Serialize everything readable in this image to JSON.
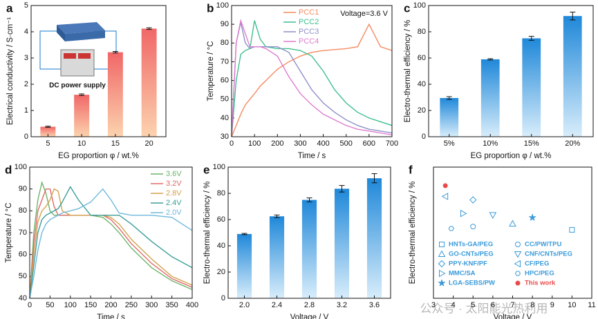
{
  "chart_data": [
    {
      "type": "bar",
      "panel_label": "a",
      "xlabel": "EG proportion φ / wt.%",
      "ylabel": "Electrical conductivity / S·cm⁻¹",
      "inset_label": "DC power supply",
      "categories": [
        "5",
        "10",
        "15",
        "20"
      ],
      "values": [
        0.38,
        1.6,
        3.22,
        4.12
      ],
      "errors": [
        0.02,
        0.03,
        0.03,
        0.03
      ],
      "colors": [
        "#f06767",
        "#fcd3ae"
      ],
      "ylim": [
        0,
        5
      ],
      "yticks": [
        0,
        1,
        2,
        3,
        4,
        5
      ]
    },
    {
      "type": "line",
      "panel_label": "b",
      "xlabel": "Time / s",
      "ylabel": "Temperature / °C",
      "annotation": "Voltage=3.6 V",
      "legend": "top",
      "x": [
        0,
        20,
        40,
        60,
        80,
        100,
        125,
        150,
        200,
        250,
        300,
        350,
        400,
        450,
        500,
        550,
        600,
        650,
        700
      ],
      "series": [
        {
          "name": "PCC1",
          "color": "#f4895f",
          "values": [
            30,
            36,
            42,
            47,
            50,
            53,
            57,
            60,
            66,
            70,
            73,
            75,
            76,
            76.5,
            77,
            78,
            90,
            78,
            76
          ]
        },
        {
          "name": "PCC2",
          "color": "#3fbf8c",
          "values": [
            30,
            60,
            74,
            76,
            77,
            92,
            82,
            78,
            77,
            77,
            76,
            73,
            65,
            55,
            48,
            43,
            40,
            38,
            36
          ]
        },
        {
          "name": "PCC3",
          "color": "#8d8fc9",
          "values": [
            30,
            80,
            91,
            80,
            77,
            78,
            78,
            78,
            78,
            75,
            65,
            55,
            48,
            43,
            39,
            36,
            34,
            33,
            32
          ]
        },
        {
          "name": "PCC4",
          "color": "#de7ccf",
          "values": [
            30,
            80,
            92,
            85,
            78,
            78,
            78,
            77,
            73,
            62,
            53,
            47,
            42,
            39,
            36,
            34,
            33,
            32,
            31
          ]
        }
      ],
      "xlim": [
        0,
        700
      ],
      "xticks": [
        0,
        100,
        200,
        300,
        400,
        500,
        600,
        700
      ],
      "ylim": [
        30,
        100
      ],
      "yticks": [
        30,
        40,
        50,
        60,
        70,
        80,
        90,
        100
      ]
    },
    {
      "type": "bar",
      "panel_label": "c",
      "xlabel": "EG proportion φ / wt.%",
      "ylabel": "Electro-thermal efficiency / %",
      "categories": [
        "5%",
        "10%",
        "15%",
        "20%"
      ],
      "values": [
        29.5,
        59,
        75,
        92
      ],
      "errors": [
        1,
        0.5,
        1.5,
        3
      ],
      "colors": [
        "#1f88d9",
        "#d8edfb"
      ],
      "ylim": [
        0,
        100
      ],
      "yticks": [
        0,
        20,
        40,
        60,
        80,
        100
      ]
    },
    {
      "type": "line",
      "panel_label": "d",
      "xlabel": "Time / s",
      "ylabel": "Temperature / °C",
      "legend": "top-right",
      "x": [
        0,
        10,
        20,
        30,
        40,
        50,
        60,
        70,
        80,
        100,
        120,
        150,
        180,
        200,
        220,
        250,
        300,
        350,
        400
      ],
      "series": [
        {
          "name": "3.6V",
          "color": "#6db36a",
          "values": [
            40,
            70,
            85,
            93,
            88,
            80,
            78,
            78,
            78,
            78,
            78,
            78,
            77,
            74,
            70,
            63,
            54,
            48,
            44
          ]
        },
        {
          "name": "3.2V",
          "color": "#e06868",
          "values": [
            40,
            65,
            80,
            85,
            90,
            90,
            82,
            78,
            78,
            78,
            78,
            78,
            78,
            76,
            72,
            65,
            56,
            49,
            45
          ]
        },
        {
          "name": "2.8V",
          "color": "#d2a14c",
          "values": [
            40,
            60,
            75,
            80,
            82,
            85,
            90,
            89,
            80,
            78,
            78,
            78,
            78,
            77,
            74,
            67,
            58,
            50,
            46
          ]
        },
        {
          "name": "2.4V",
          "color": "#3a9e9a",
          "values": [
            40,
            55,
            70,
            76,
            78,
            79,
            80,
            81,
            84,
            91,
            85,
            78,
            78,
            78,
            78,
            74,
            66,
            59,
            54
          ]
        },
        {
          "name": "2.0V",
          "color": "#6fb7dc",
          "values": [
            40,
            50,
            62,
            70,
            74,
            76,
            77,
            78,
            79,
            80,
            81,
            84,
            90,
            85,
            79,
            78,
            78,
            77,
            71
          ]
        }
      ],
      "xlim": [
        0,
        400
      ],
      "xticks": [
        0,
        50,
        100,
        150,
        200,
        250,
        300,
        350,
        400
      ],
      "ylim": [
        40,
        100
      ],
      "yticks": [
        40,
        50,
        60,
        70,
        80,
        90,
        100
      ]
    },
    {
      "type": "bar",
      "panel_label": "e",
      "xlabel": "Voltage / V",
      "ylabel": "Electro-thermal efficiency / %",
      "categories": [
        "2.0",
        "2.4",
        "2.8",
        "3.2",
        "3.6"
      ],
      "values": [
        49,
        62.5,
        75,
        83.5,
        91.5
      ],
      "errors": [
        0.5,
        1,
        1.5,
        2.5,
        3.5
      ],
      "colors": [
        "#1f88d9",
        "#d8edfb"
      ],
      "ylim": [
        0,
        100
      ],
      "yticks": [
        0,
        20,
        40,
        60,
        80,
        100
      ]
    },
    {
      "type": "scatter",
      "panel_label": "f",
      "xlabel": "Voltage / V",
      "ylabel": "Electro-thermal efficiency / %",
      "legend": "bottom-left",
      "series": [
        {
          "name": "HNTs-GA/PEG",
          "color": "#3a9ad9",
          "marker": "square",
          "x": [
            10
          ],
          "values": [
            71.3
          ]
        },
        {
          "name": "GO-CNTs/PEG",
          "color": "#3a9ad9",
          "marker": "triangle-up",
          "x": [
            7
          ],
          "values": [
            74.1
          ]
        },
        {
          "name": "PPY-KNF/PF",
          "color": "#3a9ad9",
          "marker": "diamond",
          "x": [
            5
          ],
          "values": [
            85
          ]
        },
        {
          "name": "MMC/SA",
          "color": "#3a9ad9",
          "marker": "triangle-right",
          "x": [
            4.5
          ],
          "values": [
            78.8
          ]
        },
        {
          "name": "LGA-SEBS/PW",
          "color": "#3a9ad9",
          "marker": "star",
          "x": [
            8
          ],
          "values": [
            76.9
          ]
        },
        {
          "name": "CC/PW/TPU",
          "color": "#3a9ad9",
          "marker": "circle",
          "x": [
            5
          ],
          "values": [
            72.8
          ]
        },
        {
          "name": "CNF/CNTs/PEG",
          "color": "#3a9ad9",
          "marker": "triangle-down",
          "x": [
            6
          ],
          "values": [
            78.1
          ]
        },
        {
          "name": "CF/PEG",
          "color": "#3a9ad9",
          "marker": "triangle-left",
          "x": [
            3.6
          ],
          "values": [
            86.6
          ]
        },
        {
          "name": "HPC/PEG",
          "color": "#3a9ad9",
          "marker": "hexagon",
          "x": [
            3.9
          ],
          "values": [
            71.9
          ]
        },
        {
          "name": "This work",
          "color": "#e84a4a",
          "marker": "dot",
          "x": [
            3.6
          ],
          "values": [
            91.5
          ]
        }
      ],
      "xlim": [
        3,
        11
      ],
      "xticks": [
        3,
        4,
        5,
        6,
        7,
        8,
        9,
        10,
        11
      ],
      "ylim": [
        40,
        100
      ]
    }
  ],
  "watermark": "公众号 · 太阳能光热利用"
}
